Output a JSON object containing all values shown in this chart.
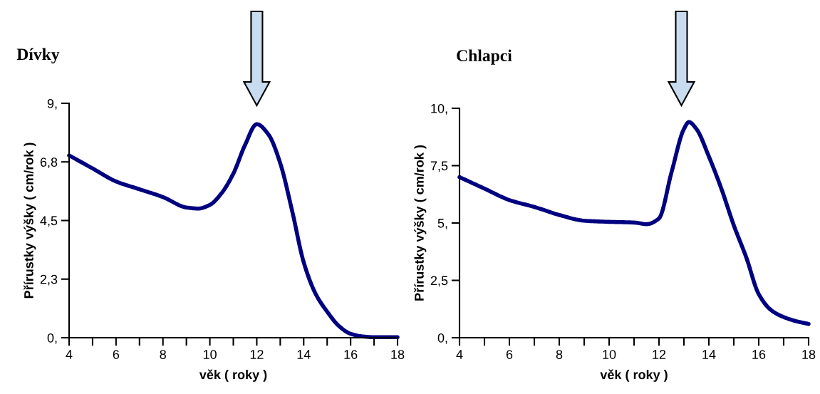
{
  "chart_data": [
    {
      "type": "line",
      "title": "Dívky",
      "xlabel": "věk ( roky )",
      "ylabel": "Přírustky výšky ( cm/rok )",
      "series": [
        {
          "color": "#000080",
          "x": [
            4,
            5,
            6,
            7,
            8,
            9,
            9.5,
            10,
            10.5,
            11,
            11.5,
            12,
            12.5,
            13,
            13.5,
            14,
            14.5,
            15,
            15.5,
            16,
            16.5,
            17,
            18
          ],
          "values": [
            7.0,
            6.5,
            6.0,
            5.7,
            5.4,
            5.0,
            4.96,
            5.1,
            5.55,
            6.3,
            7.4,
            8.2,
            7.8,
            6.7,
            4.9,
            2.9,
            1.7,
            1.0,
            0.45,
            0.15,
            0.05,
            0.02,
            0.02
          ]
        }
      ],
      "xlim": [
        4,
        18
      ],
      "xticks": [
        4,
        {
          "value": 5,
          "label": null
        },
        6,
        {
          "value": 7,
          "label": null
        },
        8,
        {
          "value": 9,
          "label": null
        },
        10,
        {
          "value": 11,
          "label": null
        },
        12,
        {
          "value": 13,
          "label": null
        },
        14,
        {
          "value": 15,
          "label": null
        },
        16,
        {
          "value": 17,
          "label": null
        },
        18
      ],
      "ylim": [
        0,
        9
      ],
      "yticks": [
        {
          "value": 0,
          "label": "0,"
        },
        {
          "value": 2.25,
          "label": "2,3"
        },
        {
          "value": 4.5,
          "label": "4,5"
        },
        {
          "value": 6.75,
          "label": "6,8"
        },
        {
          "value": 9,
          "label": "9,"
        }
      ],
      "grid": false,
      "legend": false,
      "marker": "none",
      "line_style": "solid"
    },
    {
      "type": "line",
      "title": "Chlapci",
      "xlabel": "věk ( roky )",
      "ylabel": "Přírustky výšky ( cm/rok )",
      "series": [
        {
          "color": "#000080",
          "x": [
            4,
            5,
            6,
            7,
            8,
            9,
            10,
            11,
            11.5,
            12,
            12.5,
            13,
            13.2,
            13.5,
            14,
            14.5,
            15,
            15.5,
            16,
            16.5,
            17,
            17.5,
            18
          ],
          "values": [
            7.0,
            6.5,
            6.0,
            5.7,
            5.35,
            5.1,
            5.05,
            5.02,
            4.95,
            5.2,
            7.2,
            9.1,
            9.4,
            9.1,
            7.9,
            6.5,
            4.9,
            3.5,
            1.9,
            1.2,
            0.9,
            0.72,
            0.6
          ]
        }
      ],
      "xlim": [
        4,
        18
      ],
      "xticks": [
        4,
        {
          "value": 5,
          "label": null
        },
        6,
        {
          "value": 7,
          "label": null
        },
        8,
        {
          "value": 9,
          "label": null
        },
        10,
        {
          "value": 11,
          "label": null
        },
        12,
        {
          "value": 13,
          "label": null
        },
        14,
        {
          "value": 15,
          "label": null
        },
        16,
        {
          "value": 17,
          "label": null
        },
        18
      ],
      "ylim": [
        0,
        10
      ],
      "yticks": [
        {
          "value": 0,
          "label": "0,"
        },
        {
          "value": 2.5,
          "label": "2,5"
        },
        {
          "value": 5,
          "label": "5,"
        },
        {
          "value": 7.5,
          "label": "7,5"
        },
        {
          "value": 10,
          "label": "10,"
        }
      ],
      "grid": false,
      "legend": false,
      "marker": "none",
      "line_style": "solid"
    }
  ]
}
